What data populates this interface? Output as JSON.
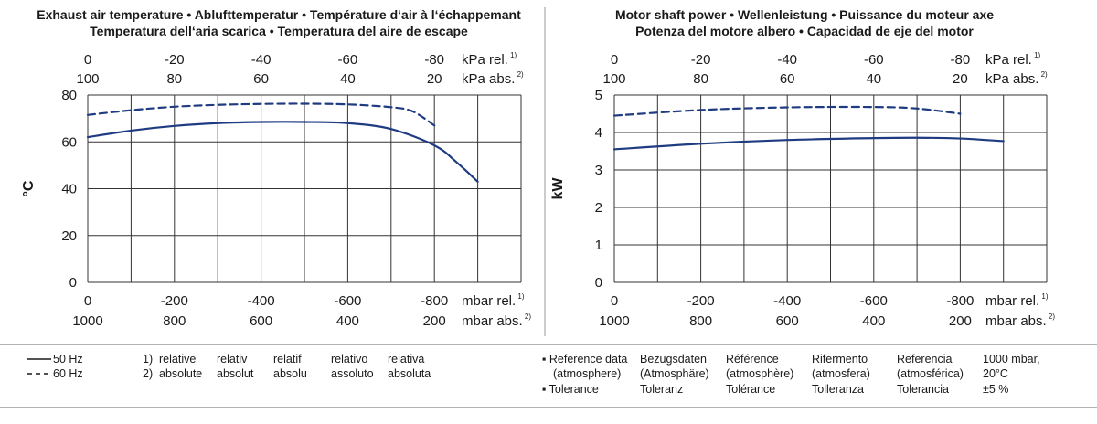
{
  "legend": {
    "hz50": "50 Hz",
    "hz60": "60 Hz",
    "notes": {
      "n1_marker": "1)",
      "n2_marker": "2)",
      "relative": [
        "relative",
        "relativ",
        "relatif",
        "relativo",
        "relativa"
      ],
      "absolute": [
        "absolute",
        "absolut",
        "absolu",
        "assoluto",
        "absoluta"
      ]
    },
    "reference_bullet": "▪ Reference data",
    "reference_sub": "(atmosphere)",
    "tolerance_bullet": "▪ Tolerance",
    "reference_translations": [
      {
        "line1": "Bezugsdaten",
        "line2": "(Atmosphäre)",
        "tol": "Toleranz"
      },
      {
        "line1": "Référence",
        "line2": "(atmosphère)",
        "tol": "Tolérance"
      },
      {
        "line1": "Rifermento",
        "line2": "(atmosfera)",
        "tol": "Tolleranza"
      },
      {
        "line1": "Referencia",
        "line2": "(atmosférica)",
        "tol": "Tolerancia"
      }
    ],
    "reference_values": {
      "line1": "1000 mbar,",
      "line2": "20°C",
      "tol": "±5 %"
    }
  },
  "chart_data": [
    {
      "type": "line",
      "title_line1": "Exhaust air temperature  •  Ablufttemperatur  •  Température d‘air à l‘échappemant",
      "title_line2": "Temperatura dell‘aria scarica  •  Temperatura del aire de escape",
      "ylabel": "°C",
      "ylim": [
        0,
        80
      ],
      "yticks": [
        "0",
        "20",
        "40",
        "60",
        "80"
      ],
      "xlim": [
        0,
        -1000
      ],
      "bottom_ticks_rel": [
        "0",
        "-200",
        "-400",
        "-600",
        "-800"
      ],
      "bottom_ticks_abs": [
        "1000",
        "800",
        "600",
        "400",
        "200"
      ],
      "bottom_unit_rel": "mbar rel.",
      "bottom_unit_abs": "mbar abs.",
      "top_ticks_rel": [
        "0",
        "-20",
        "-40",
        "-60",
        "-80"
      ],
      "top_ticks_abs": [
        "100",
        "80",
        "60",
        "40",
        "20"
      ],
      "top_unit_rel": "kPa rel.",
      "top_unit_abs": "kPa abs.",
      "grid": true,
      "series": [
        {
          "name": "50 Hz",
          "style": "solid",
          "color": "#1f3b82",
          "x": [
            0,
            -100,
            -200,
            -300,
            -400,
            -500,
            -600,
            -700,
            -800,
            -850,
            -900
          ],
          "y": [
            62,
            64.8,
            66.8,
            68,
            68.5,
            68.5,
            68,
            65.5,
            58.5,
            51.5,
            43
          ]
        },
        {
          "name": "60 Hz",
          "style": "dashed",
          "color": "#1f3b82",
          "x": [
            0,
            -100,
            -200,
            -300,
            -400,
            -500,
            -600,
            -700,
            -750,
            -800
          ],
          "y": [
            71.5,
            73.5,
            75,
            75.8,
            76.2,
            76.3,
            76,
            74.8,
            73,
            67
          ]
        }
      ]
    },
    {
      "type": "line",
      "title_line1": "Motor shaft power  •  Wellenleistung  •  Puissance du moteur axe",
      "title_line2": "Potenza del motore albero  •  Capacidad de eje del motor",
      "ylabel": "kW",
      "ylim": [
        0,
        5
      ],
      "yticks": [
        "0",
        "1",
        "2",
        "3",
        "4",
        "5"
      ],
      "xlim": [
        0,
        -1000
      ],
      "bottom_ticks_rel": [
        "0",
        "-200",
        "-400",
        "-600",
        "-800"
      ],
      "bottom_ticks_abs": [
        "1000",
        "800",
        "600",
        "400",
        "200"
      ],
      "bottom_unit_rel": "mbar rel.",
      "bottom_unit_abs": "mbar abs.",
      "top_ticks_rel": [
        "0",
        "-20",
        "-40",
        "-60",
        "-80"
      ],
      "top_ticks_abs": [
        "100",
        "80",
        "60",
        "40",
        "20"
      ],
      "top_unit_rel": "kPa rel.",
      "top_unit_abs": "kPa abs.",
      "grid": true,
      "series": [
        {
          "name": "50 Hz",
          "style": "solid",
          "color": "#1f3b82",
          "x": [
            0,
            -200,
            -400,
            -600,
            -700,
            -800,
            -900
          ],
          "y": [
            3.55,
            3.7,
            3.8,
            3.85,
            3.86,
            3.84,
            3.77
          ]
        },
        {
          "name": "60 Hz",
          "style": "dashed",
          "color": "#1f3b82",
          "x": [
            0,
            -200,
            -400,
            -600,
            -700,
            -800
          ],
          "y": [
            4.45,
            4.6,
            4.67,
            4.68,
            4.64,
            4.5
          ]
        }
      ]
    }
  ]
}
